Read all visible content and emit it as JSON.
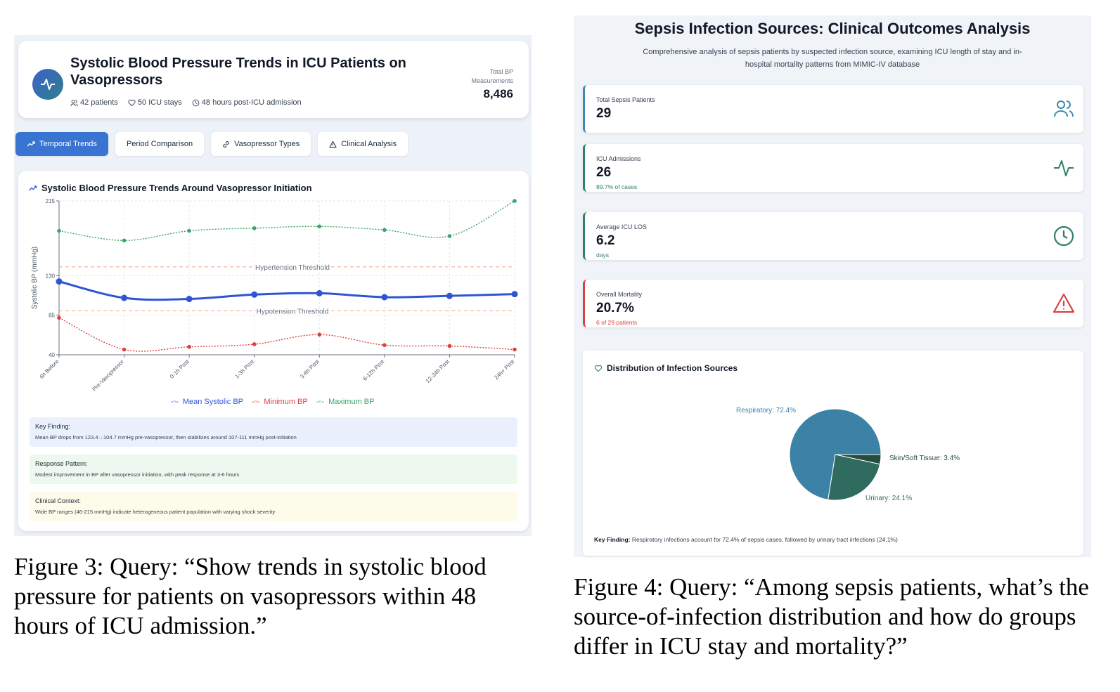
{
  "figure3": {
    "header": {
      "title": "Systolic Blood Pressure Trends in ICU Patients on Vasopressors",
      "meta": [
        "42 patients",
        "50 ICU stays",
        "48 hours post-ICU admission"
      ],
      "total_label": "Total BP Measurements",
      "total_value": "8,486"
    },
    "tabs": [
      {
        "label": "Temporal Trends",
        "icon": "trend-up-icon",
        "active": true
      },
      {
        "label": "Period Comparison",
        "active": false
      },
      {
        "label": "Vasopressor Types",
        "icon": "link-icon",
        "active": false
      },
      {
        "label": "Clinical Analysis",
        "icon": "warning-icon",
        "active": false
      }
    ],
    "chart_title": "Systolic Blood Pressure Trends Around Vasopressor Initiation",
    "chart_data": {
      "type": "line",
      "categories": [
        "6h Before",
        "Pre-Vasopressor",
        "0-1h Post",
        "1-3h Post",
        "3-6h Post",
        "6-12h Post",
        "12-24h Post",
        "24h+ Post"
      ],
      "series": [
        {
          "name": "Mean Systolic BP",
          "color": "#2f55d4",
          "values": [
            123.4,
            104.7,
            103.5,
            108.5,
            110,
            105.5,
            107,
            109
          ]
        },
        {
          "name": "Minimum BP",
          "color": "#d94141",
          "values": [
            82,
            46,
            49,
            52,
            63,
            51,
            50,
            46
          ]
        },
        {
          "name": "Maximum BP",
          "color": "#3aa46a",
          "values": [
            181,
            170,
            181,
            184,
            186,
            182,
            175,
            215
          ]
        }
      ],
      "ylabel": "Systolic BP (mmHg)",
      "yticks": [
        40,
        85,
        130,
        215
      ],
      "ylim": [
        40,
        215
      ],
      "thresholds": [
        {
          "label": "Hypertension Threshold",
          "value": 140
        },
        {
          "label": "Hypotension Threshold",
          "value": 90
        }
      ],
      "grid": true,
      "legend": "bottom"
    },
    "notes": [
      {
        "title": "Key Finding:",
        "body": "Mean BP drops from 123.4→104.7 mmHg pre-vasopressor, then stabilizes around 107-111 mmHg post-initiation",
        "bg": "#eaf1fd"
      },
      {
        "title": "Response Pattern:",
        "body": "Modest improvement in BP after vasopressor initiation, with peak response at 3-6 hours",
        "bg": "#edf8ef"
      },
      {
        "title": "Clinical Context:",
        "body": "Wide BP ranges (46-215 mmHg) indicate heterogeneous patient population with varying shock severity",
        "bg": "#fdfbe9"
      }
    ],
    "caption": "Figure 3: Query: “Show trends in systolic blood pressure for patients on vasopressors within 48 hours of ICU admission.”"
  },
  "figure4": {
    "title": "Sepsis Infection Sources: Clinical Outcomes Analysis",
    "subtitle": "Comprehensive analysis of sepsis patients by suspected infection source, examining ICU length of stay and in-hospital mortality patterns from MIMIC-IV database",
    "stats": [
      {
        "label": "Total Sepsis Patients",
        "value": "29",
        "sub": "",
        "icon": "users-icon",
        "accent": "#3b8bb0",
        "sub_color": "#2f7f6a"
      },
      {
        "label": "ICU Admissions",
        "value": "26",
        "sub": "89.7% of cases",
        "icon": "pulse-icon",
        "accent": "#2f7f6a",
        "sub_color": "#2f7f6a"
      },
      {
        "label": "Average ICU LOS",
        "value": "6.2",
        "sub": "days",
        "icon": "clock-icon",
        "accent": "#2f7f6a",
        "sub_color": "#2f7f6a"
      },
      {
        "label": "Overall Mortality",
        "value": "20.7%",
        "sub": "6 of 29 patients",
        "icon": "alert-triangle-icon",
        "accent": "#d94141",
        "sub_color": "#d94141"
      }
    ],
    "distribution_title": "Distribution of Infection Sources",
    "chart_data": {
      "type": "pie",
      "slices": [
        {
          "label": "Respiratory: 72.4%",
          "value": 72.4,
          "color": "#3b82a6"
        },
        {
          "label": "Skin/Soft Tissue: 3.4%",
          "value": 3.4,
          "color": "#234d3f"
        },
        {
          "label": "Urinary: 24.1%",
          "value": 24.1,
          "color": "#2f6b5e"
        }
      ]
    },
    "key_finding_label": "Key Finding:",
    "key_finding": "Respiratory infections account for 72.4% of sepsis cases, followed by urinary tract infections (24.1%)",
    "caption": "Figure 4: Query: “Among sepsis patients, what’s the source-of-infection distribution and how do groups differ in ICU stay and mortality?”"
  }
}
